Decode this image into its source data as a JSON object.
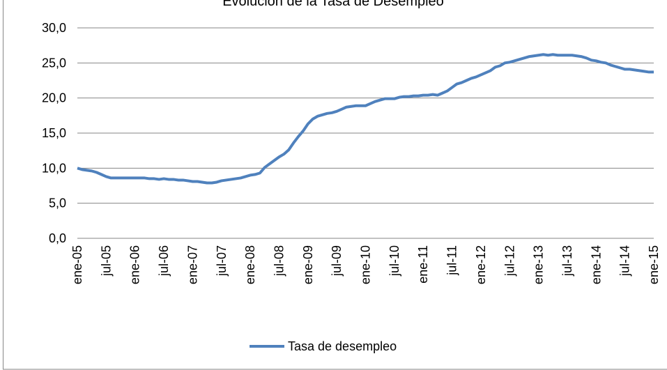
{
  "chart_data": {
    "type": "line",
    "title": "Evolución de la Tasa de Desempleo",
    "categories": [
      "ene-05",
      null,
      null,
      null,
      null,
      null,
      "jul-05",
      null,
      null,
      null,
      null,
      null,
      "ene-06",
      null,
      null,
      null,
      null,
      null,
      "jul-06",
      null,
      null,
      null,
      null,
      null,
      "ene-07",
      null,
      null,
      null,
      null,
      null,
      "jul-07",
      null,
      null,
      null,
      null,
      null,
      "ene-08",
      null,
      null,
      null,
      null,
      null,
      "jul-08",
      null,
      null,
      null,
      null,
      null,
      "ene-09",
      null,
      null,
      null,
      null,
      null,
      "jul-09",
      null,
      null,
      null,
      null,
      null,
      "ene-10",
      null,
      null,
      null,
      null,
      null,
      "jul-10",
      null,
      null,
      null,
      null,
      null,
      "ene-11",
      null,
      null,
      null,
      null,
      null,
      "jul-11",
      null,
      null,
      null,
      null,
      null,
      "ene-12",
      null,
      null,
      null,
      null,
      null,
      "jul-12",
      null,
      null,
      null,
      null,
      null,
      "ene-13",
      null,
      null,
      null,
      null,
      null,
      "jul-13",
      null,
      null,
      null,
      null,
      null,
      "ene-14",
      null,
      null,
      null,
      null,
      null,
      "jul-14",
      null,
      null,
      null,
      null,
      null,
      "ene-15"
    ],
    "series": [
      {
        "name": "Tasa de desempleo",
        "color": "#4f81bd",
        "values": [
          10.0,
          9.8,
          9.7,
          9.6,
          9.4,
          9.1,
          8.8,
          8.6,
          8.6,
          8.6,
          8.6,
          8.6,
          8.6,
          8.6,
          8.6,
          8.5,
          8.5,
          8.4,
          8.5,
          8.4,
          8.4,
          8.3,
          8.3,
          8.2,
          8.1,
          8.1,
          8.0,
          7.9,
          7.9,
          8.0,
          8.2,
          8.3,
          8.4,
          8.5,
          8.6,
          8.8,
          9.0,
          9.1,
          9.3,
          10.1,
          10.6,
          11.1,
          11.6,
          12.0,
          12.6,
          13.6,
          14.5,
          15.3,
          16.3,
          17.0,
          17.4,
          17.6,
          17.8,
          17.9,
          18.1,
          18.4,
          18.7,
          18.8,
          18.9,
          18.9,
          18.9,
          19.2,
          19.5,
          19.7,
          19.9,
          19.9,
          19.9,
          20.1,
          20.2,
          20.2,
          20.3,
          20.3,
          20.4,
          20.4,
          20.5,
          20.4,
          20.7,
          21.0,
          21.5,
          22.0,
          22.2,
          22.5,
          22.8,
          23.0,
          23.3,
          23.6,
          23.9,
          24.4,
          24.6,
          25.0,
          25.1,
          25.3,
          25.5,
          25.7,
          25.9,
          26.0,
          26.1,
          26.2,
          26.1,
          26.2,
          26.1,
          26.1,
          26.1,
          26.1,
          26.0,
          25.9,
          25.7,
          25.4,
          25.3,
          25.1,
          25.0,
          24.7,
          24.5,
          24.3,
          24.1,
          24.1,
          24.0,
          23.9,
          23.8,
          23.7,
          23.7
        ]
      }
    ],
    "ylim": [
      0,
      30
    ],
    "yticks": [
      {
        "value": 0,
        "label": "0,0"
      },
      {
        "value": 5,
        "label": "5,0"
      },
      {
        "value": 10,
        "label": "10,0"
      },
      {
        "value": 15,
        "label": "15,0"
      },
      {
        "value": 20,
        "label": "20,0"
      },
      {
        "value": 25,
        "label": "25,0"
      },
      {
        "value": 30,
        "label": "30,0"
      }
    ],
    "grid": true,
    "legend": "bottom"
  }
}
